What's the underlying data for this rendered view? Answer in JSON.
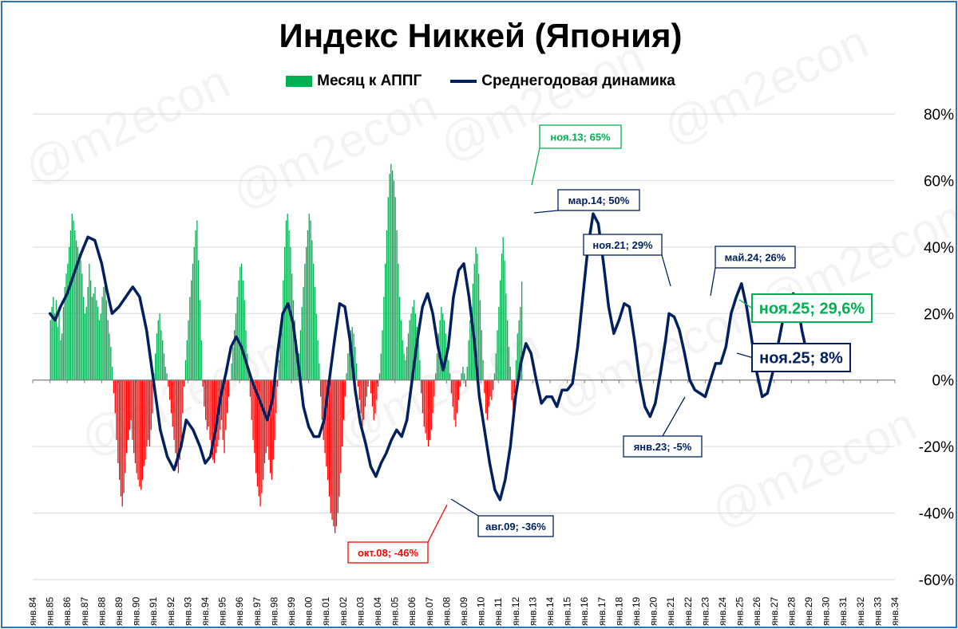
{
  "chart_data": {
    "type": "bar+line",
    "title": "Индекс Никкей (Япония)",
    "ylim": [
      -60,
      80
    ],
    "yticks": [
      -60,
      -40,
      -20,
      0,
      20,
      40,
      60,
      80
    ],
    "ytick_labels": [
      "-60%",
      "-40%",
      "-20%",
      "0%",
      "20%",
      "40%",
      "60%",
      "80%"
    ],
    "x_tick_labels": [
      "янв.84",
      "янв.85",
      "янв.86",
      "янв.87",
      "янв.88",
      "янв.89",
      "янв.90",
      "янв.91",
      "янв.92",
      "янв.93",
      "янв.94",
      "янв.95",
      "янв.96",
      "янв.97",
      "янв.98",
      "янв.99",
      "янв.00",
      "янв.01",
      "янв.02",
      "янв.03",
      "янв.04",
      "янв.05",
      "янв.06",
      "янв.07",
      "янв.08",
      "янв.09",
      "янв.10",
      "янв.11",
      "янв.12",
      "янв.13",
      "янв.14",
      "янв.15",
      "янв.16",
      "янв.17",
      "янв.18",
      "янв.19",
      "янв.20",
      "янв.21",
      "янв.22",
      "янв.23",
      "янв.24",
      "янв.25",
      "янв.26",
      "янв.27",
      "янв.28",
      "янв.29",
      "янв.30",
      "янв.31",
      "янв.32",
      "янв.33",
      "янв.34"
    ],
    "x_start_year": 1984,
    "series": [
      {
        "name": "Месяц к АППГ",
        "type": "bar",
        "color_pos": "#00b050",
        "color_neg": "#ff0000",
        "start": "янв.85",
        "values": [
          18,
          22,
          25,
          20,
          24,
          16,
          21,
          12,
          14,
          22,
          28,
          32,
          35,
          40,
          45,
          50,
          48,
          45,
          42,
          40,
          38,
          36,
          32,
          25,
          20,
          22,
          28,
          35,
          30,
          25,
          26,
          28,
          24,
          22,
          18,
          20,
          25,
          28,
          30,
          24,
          18,
          14,
          10,
          4,
          -4,
          -10,
          -18,
          -25,
          -30,
          -35,
          -38,
          -34,
          -28,
          -22,
          -18,
          -15,
          -12,
          -18,
          -22,
          -25,
          -28,
          -30,
          -32,
          -33,
          -30,
          -26,
          -24,
          -20,
          -18,
          -20,
          -15,
          -10,
          2,
          8,
          14,
          18,
          20,
          15,
          12,
          8,
          4,
          2,
          -2,
          -6,
          -10,
          -14,
          -18,
          -22,
          -26,
          -28,
          -24,
          -18,
          -10,
          -2,
          6,
          12,
          18,
          25,
          30,
          35,
          40,
          45,
          48,
          36,
          24,
          12,
          -2,
          -8,
          -12,
          -15,
          -14,
          -18,
          -22,
          -24,
          -25,
          -22,
          -20,
          -18,
          -15,
          -12,
          -18,
          -22,
          -15,
          -10,
          -5,
          0,
          5,
          10,
          15,
          20,
          25,
          30,
          34,
          35,
          30,
          24,
          15,
          8,
          2,
          -5,
          -12,
          -18,
          -22,
          -28,
          -32,
          -35,
          -38,
          -34,
          -30,
          -25,
          -22,
          -20,
          -24,
          -28,
          -30,
          -24,
          -18,
          -10,
          -2,
          6,
          12,
          20,
          30,
          40,
          48,
          50,
          45,
          40,
          32,
          24,
          18,
          12,
          6,
          8,
          15,
          22,
          28,
          35,
          40,
          45,
          50,
          48,
          42,
          35,
          28,
          20,
          12,
          5,
          -5,
          -12,
          -18,
          -22,
          -26,
          -30,
          -35,
          -40,
          -42,
          -44,
          -46,
          -44,
          -40,
          -35,
          -28,
          -20,
          -12,
          -5,
          2,
          8,
          12,
          15,
          16,
          14,
          10,
          5,
          -2,
          -6,
          -10,
          -14,
          -12,
          -8,
          -5,
          -2,
          0,
          -4,
          -8,
          -12,
          -10,
          -6,
          -2,
          2,
          8,
          15,
          25,
          35,
          45,
          55,
          62,
          65,
          63,
          60,
          55,
          45,
          35,
          25,
          18,
          12,
          8,
          6,
          10,
          14,
          18,
          20,
          22,
          24,
          20,
          16,
          12,
          6,
          -4,
          -10,
          -14,
          -16,
          -18,
          -20,
          -18,
          -15,
          -10,
          -5,
          2,
          8,
          14,
          18,
          22,
          20,
          18,
          14,
          10,
          6,
          2,
          -4,
          -8,
          -12,
          -14,
          -10,
          -6,
          -2,
          2,
          4,
          2,
          -2,
          4,
          12,
          18,
          22,
          29,
          35,
          40,
          38,
          32,
          24,
          15,
          6,
          -4,
          -10,
          -12,
          -8,
          -5,
          -6,
          -3,
          2,
          8,
          15,
          22,
          30,
          38,
          43,
          36,
          26,
          18,
          10,
          4,
          -6,
          -12,
          -4,
          6,
          14,
          18,
          22,
          29.6
        ]
      },
      {
        "name": "Среднегодовая динамика",
        "type": "line",
        "color": "#002060",
        "points": [
          [
            1985.0,
            20
          ],
          [
            1985.3,
            18
          ],
          [
            1985.6,
            22
          ],
          [
            1986.0,
            26
          ],
          [
            1986.4,
            32
          ],
          [
            1986.8,
            38
          ],
          [
            1987.2,
            43
          ],
          [
            1987.6,
            42
          ],
          [
            1988.0,
            35
          ],
          [
            1988.3,
            27
          ],
          [
            1988.6,
            20
          ],
          [
            1989.0,
            22
          ],
          [
            1989.4,
            25
          ],
          [
            1989.8,
            28
          ],
          [
            1990.2,
            25
          ],
          [
            1990.6,
            15
          ],
          [
            1991.0,
            0
          ],
          [
            1991.4,
            -15
          ],
          [
            1991.8,
            -23
          ],
          [
            1992.2,
            -27
          ],
          [
            1992.6,
            -20
          ],
          [
            1992.9,
            -12
          ],
          [
            1993.3,
            -15
          ],
          [
            1993.7,
            -20
          ],
          [
            1994.0,
            -25
          ],
          [
            1994.3,
            -23
          ],
          [
            1994.6,
            -15
          ],
          [
            1994.9,
            -5
          ],
          [
            1995.2,
            2
          ],
          [
            1995.5,
            10
          ],
          [
            1995.8,
            13
          ],
          [
            1996.1,
            10
          ],
          [
            1996.4,
            5
          ],
          [
            1996.7,
            0
          ],
          [
            1997.0,
            -4
          ],
          [
            1997.3,
            -8
          ],
          [
            1997.6,
            -12
          ],
          [
            1997.9,
            -6
          ],
          [
            1998.2,
            8
          ],
          [
            1998.5,
            20
          ],
          [
            1998.8,
            23
          ],
          [
            1999.1,
            17
          ],
          [
            1999.4,
            5
          ],
          [
            1999.7,
            -8
          ],
          [
            2000.0,
            -14
          ],
          [
            2000.3,
            -17
          ],
          [
            2000.6,
            -17
          ],
          [
            2000.9,
            -12
          ],
          [
            2001.2,
            0
          ],
          [
            2001.5,
            12
          ],
          [
            2001.8,
            23
          ],
          [
            2002.1,
            22
          ],
          [
            2002.4,
            12
          ],
          [
            2002.7,
            -3
          ],
          [
            2003.0,
            -13
          ],
          [
            2003.3,
            -19
          ],
          [
            2003.6,
            -26
          ],
          [
            2003.9,
            -29
          ],
          [
            2004.2,
            -25
          ],
          [
            2004.5,
            -22
          ],
          [
            2004.8,
            -18
          ],
          [
            2005.1,
            -15
          ],
          [
            2005.4,
            -17
          ],
          [
            2005.7,
            -12
          ],
          [
            2006.0,
            0
          ],
          [
            2006.3,
            12
          ],
          [
            2006.6,
            22
          ],
          [
            2006.9,
            26
          ],
          [
            2007.2,
            20
          ],
          [
            2007.5,
            10
          ],
          [
            2007.8,
            3
          ],
          [
            2008.1,
            10
          ],
          [
            2008.4,
            25
          ],
          [
            2008.7,
            33
          ],
          [
            2009.0,
            35
          ],
          [
            2009.3,
            25
          ],
          [
            2009.6,
            12
          ],
          [
            2009.9,
            -5
          ],
          [
            2010.2,
            -15
          ],
          [
            2010.5,
            -25
          ],
          [
            2010.8,
            -33
          ],
          [
            2011.1,
            -36
          ],
          [
            2011.4,
            -30
          ],
          [
            2011.7,
            -20
          ],
          [
            2012.0,
            -5
          ],
          [
            2012.3,
            5
          ],
          [
            2012.6,
            11
          ],
          [
            2012.9,
            8
          ],
          [
            2013.2,
            0
          ],
          [
            2013.5,
            -7
          ],
          [
            2013.8,
            -5
          ],
          [
            2014.1,
            -5
          ],
          [
            2014.4,
            -8
          ],
          [
            2014.7,
            -3
          ],
          [
            2015.0,
            -3
          ],
          [
            2015.3,
            -1
          ],
          [
            2015.6,
            10
          ],
          [
            2015.9,
            25
          ],
          [
            2016.2,
            40
          ],
          [
            2016.5,
            50
          ],
          [
            2016.8,
            47
          ],
          [
            2017.1,
            35
          ],
          [
            2017.4,
            22
          ],
          [
            2017.7,
            14
          ],
          [
            2018.0,
            18
          ],
          [
            2018.3,
            23
          ],
          [
            2018.6,
            22
          ],
          [
            2018.9,
            12
          ],
          [
            2019.2,
            0
          ],
          [
            2019.5,
            -8
          ],
          [
            2019.8,
            -11
          ],
          [
            2020.1,
            -7
          ],
          [
            2020.4,
            2
          ],
          [
            2020.7,
            12
          ],
          [
            2020.9,
            20
          ],
          [
            2021.2,
            19
          ],
          [
            2021.5,
            15
          ],
          [
            2021.8,
            8
          ],
          [
            2022.1,
            0
          ],
          [
            2022.4,
            -3
          ],
          [
            2022.7,
            -4
          ],
          [
            2023.0,
            -5
          ],
          [
            2023.3,
            0
          ],
          [
            2023.6,
            5
          ],
          [
            2023.9,
            5
          ],
          [
            2024.2,
            10
          ],
          [
            2024.5,
            20
          ],
          [
            2024.8,
            25
          ],
          [
            2025.1,
            29
          ],
          [
            2025.4,
            22
          ],
          [
            2025.7,
            12
          ],
          [
            2026.0,
            2
          ],
          [
            2026.3,
            -5
          ],
          [
            2026.6,
            -4
          ],
          [
            2026.9,
            2
          ],
          [
            2027.2,
            10
          ],
          [
            2027.5,
            18
          ],
          [
            2027.8,
            22
          ],
          [
            2028.1,
            26
          ],
          [
            2028.3,
            25
          ],
          [
            2028.6,
            15
          ],
          [
            2028.9,
            8
          ],
          [
            2029.2,
            7
          ],
          [
            2029.5,
            8
          ]
        ]
      }
    ],
    "annotations": [
      {
        "text": "ноя.13; 65%",
        "color": "#00b050",
        "size": "small"
      },
      {
        "text": "мар.14; 50%",
        "color": "#002060",
        "size": "small"
      },
      {
        "text": "окт.08; -46%",
        "color": "#ff0000",
        "size": "small"
      },
      {
        "text": "авг.09; -36%",
        "color": "#002060",
        "size": "small"
      },
      {
        "text": "ноя.21; 29%",
        "color": "#002060",
        "size": "small"
      },
      {
        "text": "янв.23; -5%",
        "color": "#002060",
        "size": "small"
      },
      {
        "text": "май.24; 26%",
        "color": "#002060",
        "size": "small"
      },
      {
        "text": "ноя.25; 29,6%",
        "color": "#00b050",
        "size": "large"
      },
      {
        "text": "ноя.25; 8%",
        "color": "#002060",
        "size": "large"
      }
    ],
    "watermark": "@m2econ",
    "grid": true,
    "legend_position": "top-center"
  }
}
